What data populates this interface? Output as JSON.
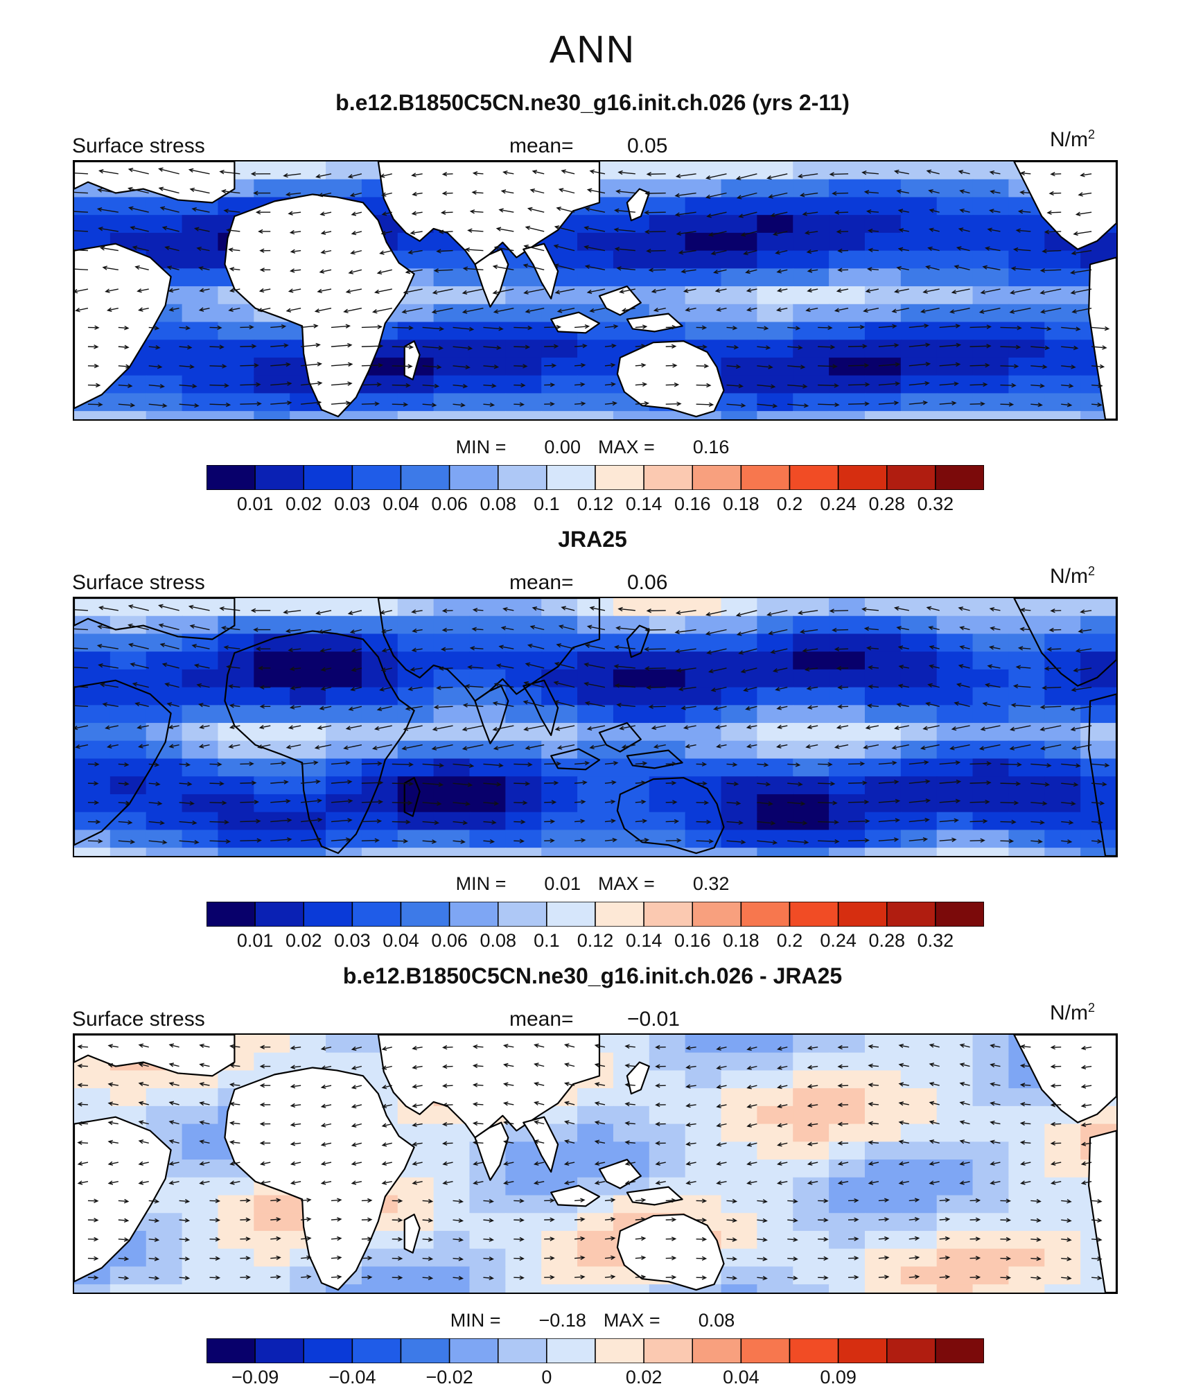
{
  "title": "ANN",
  "units_base": "N/m",
  "units_exp": "2",
  "palette": [
    "#08006b",
    "#0a21b4",
    "#0a3ad8",
    "#1f5ce8",
    "#3d7ae8",
    "#7ea6f4",
    "#aec8f6",
    "#d6e6fb",
    "#fde8d6",
    "#fbc9b1",
    "#f8a07e",
    "#f7774e",
    "#f14c25",
    "#d62e10",
    "#b01d10",
    "#7b0a0a"
  ],
  "panels": [
    {
      "title": "b.e12.B1850C5CN.ne30_g16.init.ch.026 (yrs 2-11)",
      "field_label": "Surface stress",
      "mean_label": "mean=",
      "mean_value": "0.05",
      "min_label": "MIN =",
      "min_value": "0.00",
      "max_label": "MAX =",
      "max_value": "0.16",
      "colorbar_ticks": [
        "0.01",
        "0.02",
        "0.03",
        "0.04",
        "0.06",
        "0.08",
        "0.1",
        "0.12",
        "0.14",
        "0.16",
        "0.18",
        "0.2",
        "0.24",
        "0.28",
        "0.32"
      ],
      "map_style": "model"
    },
    {
      "title": "JRA25",
      "field_label": "Surface stress",
      "mean_label": "mean=",
      "mean_value": "0.06",
      "min_label": "MIN =",
      "min_value": "0.01",
      "max_label": "MAX =",
      "max_value": "0.32",
      "colorbar_ticks": [
        "0.01",
        "0.02",
        "0.03",
        "0.04",
        "0.06",
        "0.08",
        "0.1",
        "0.12",
        "0.14",
        "0.16",
        "0.18",
        "0.2",
        "0.24",
        "0.28",
        "0.32"
      ],
      "map_style": "obs"
    },
    {
      "title": "b.e12.B1850C5CN.ne30_g16.init.ch.026 - JRA25",
      "field_label": "Surface stress",
      "mean_label": "mean=",
      "mean_value": "−0.01",
      "min_label": "MIN =",
      "min_value": "−0.18",
      "max_label": "MAX =",
      "max_value": "0.08",
      "colorbar_ticks": [
        "−0.09",
        "−0.04",
        "−0.02",
        "0",
        "0.02",
        "0.04",
        "0.09"
      ],
      "map_style": "diff"
    }
  ]
}
